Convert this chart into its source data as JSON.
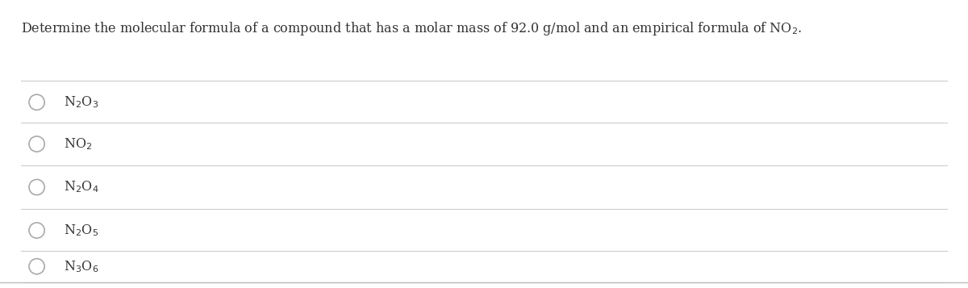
{
  "question": "Determine the molecular formula of a compound that has a molar mass of 92.0 g/mol and an empirical formula of NO$_2$.",
  "background_color": "#ffffff",
  "text_color": "#333333",
  "line_color": "#cccccc",
  "circle_color": "#aaaaaa",
  "option_formulas": [
    "N$_2$O$_3$",
    "NO$_2$",
    "N$_2$O$_4$",
    "N$_2$O$_5$",
    "N$_3$O$_6$"
  ],
  "figsize": [
    12.0,
    3.57
  ],
  "dpi": 100
}
